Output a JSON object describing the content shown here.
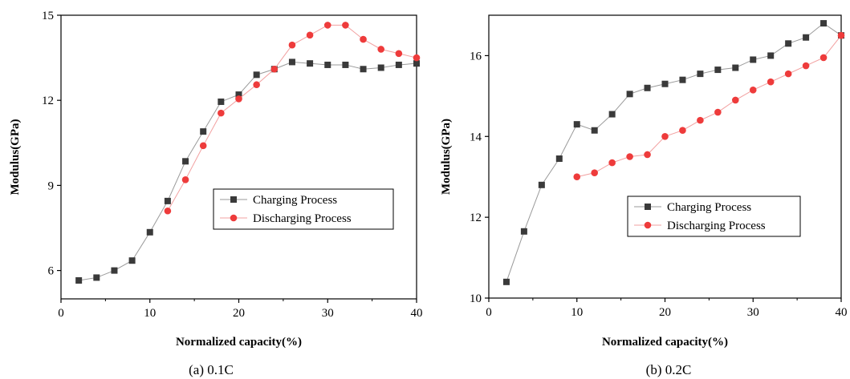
{
  "chart_data": [
    {
      "type": "line",
      "caption": "(a) 0.1C",
      "xlabel": "Normalized capacity(%)",
      "ylabel": "Modulus(GPa)",
      "xlim": [
        0,
        40
      ],
      "ylim": [
        5,
        15
      ],
      "xticks": [
        "0",
        "10",
        "20",
        "30",
        "40"
      ],
      "yticks": [
        "6",
        "9",
        "12",
        "15"
      ],
      "grid": false,
      "legend_position": "center-right",
      "series": [
        {
          "name": "Charging Process",
          "color": "#3a3a3a",
          "marker": "square",
          "x": [
            2,
            4,
            6,
            8,
            10,
            12,
            14,
            16,
            18,
            20,
            22,
            24,
            26,
            28,
            30,
            32,
            34,
            36,
            38,
            40
          ],
          "y": [
            5.65,
            5.75,
            6.0,
            6.35,
            7.35,
            8.45,
            9.85,
            10.9,
            11.95,
            12.2,
            12.9,
            13.1,
            13.35,
            13.3,
            13.25,
            13.25,
            13.1,
            13.15,
            13.25,
            13.3
          ]
        },
        {
          "name": "Discharging Process",
          "color": "#ee3b3b",
          "marker": "circle",
          "x": [
            12,
            14,
            16,
            18,
            20,
            22,
            24,
            26,
            28,
            30,
            32,
            34,
            36,
            38,
            40
          ],
          "y": [
            8.1,
            9.2,
            10.4,
            11.55,
            12.05,
            12.55,
            13.1,
            13.95,
            14.3,
            14.65,
            14.65,
            14.15,
            13.8,
            13.65,
            13.5
          ]
        }
      ]
    },
    {
      "type": "line",
      "caption": "(b) 0.2C",
      "xlabel": "Normalized capacity(%)",
      "ylabel": "Modulus(GPa)",
      "xlim": [
        0,
        40
      ],
      "ylim": [
        10,
        17
      ],
      "xticks": [
        "0",
        "10",
        "20",
        "30",
        "40"
      ],
      "yticks": [
        "10",
        "12",
        "14",
        "16"
      ],
      "grid": false,
      "legend_position": "center-right",
      "series": [
        {
          "name": "Charging Process",
          "color": "#3a3a3a",
          "marker": "square",
          "x": [
            2,
            4,
            6,
            8,
            10,
            12,
            14,
            16,
            18,
            20,
            22,
            24,
            26,
            28,
            30,
            32,
            34,
            36,
            38,
            40
          ],
          "y": [
            10.4,
            11.65,
            12.8,
            13.45,
            14.3,
            14.15,
            14.55,
            15.05,
            15.2,
            15.3,
            15.4,
            15.55,
            15.65,
            15.7,
            15.9,
            16.0,
            16.3,
            16.45,
            16.8,
            16.5
          ]
        },
        {
          "name": "Discharging Process",
          "color": "#ee3b3b",
          "marker": "circle",
          "x": [
            10,
            12,
            14,
            16,
            18,
            20,
            22,
            24,
            26,
            28,
            30,
            32,
            34,
            36,
            38,
            40
          ],
          "y": [
            13.0,
            13.1,
            13.35,
            13.5,
            13.55,
            14.0,
            14.15,
            14.4,
            14.6,
            14.9,
            15.15,
            15.35,
            15.55,
            15.75,
            15.95,
            16.5
          ]
        }
      ]
    }
  ]
}
